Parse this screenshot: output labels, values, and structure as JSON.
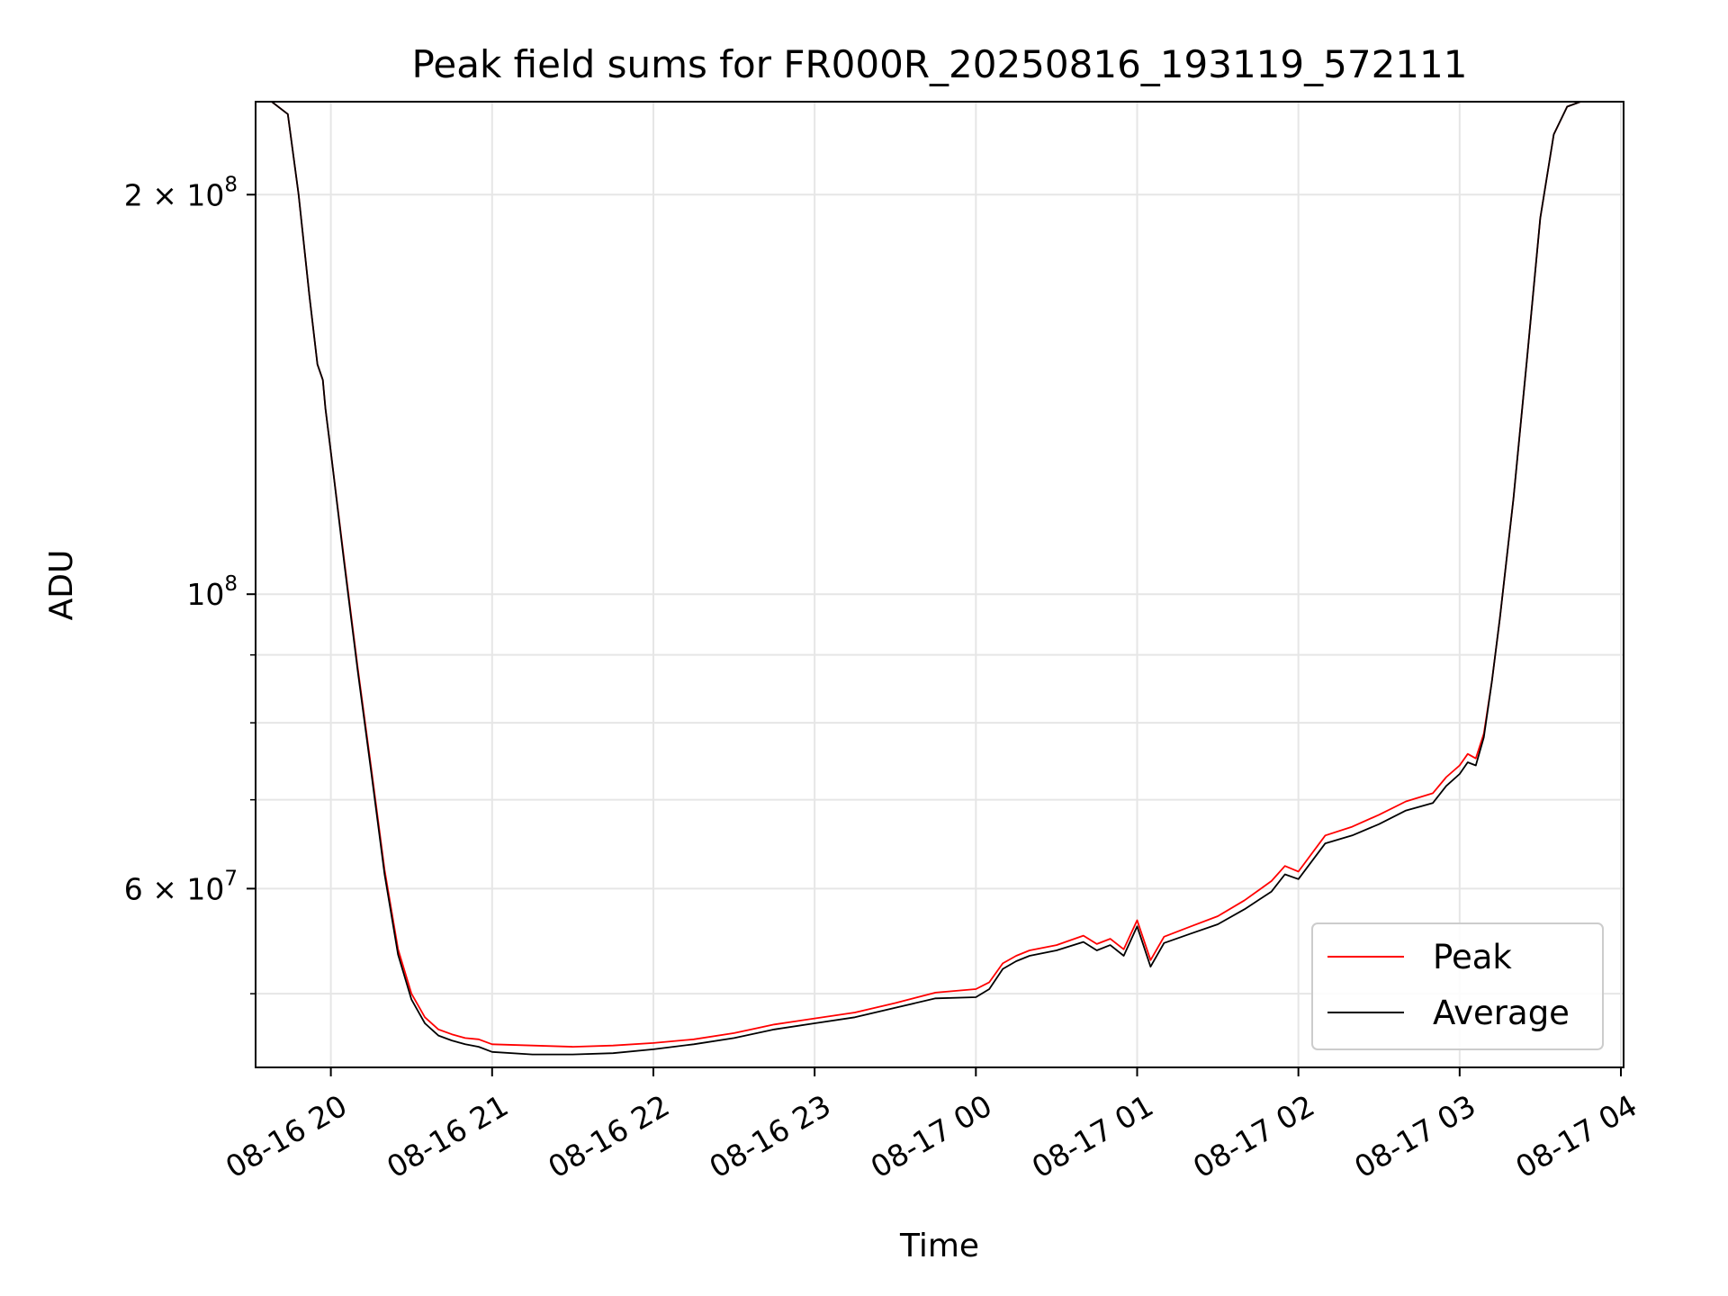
{
  "chart_data": {
    "type": "line",
    "title": "Peak field sums for FR000R_20250816_193119_572111",
    "xlabel": "Time",
    "ylabel": "ADU",
    "y_scale": "log",
    "ylim": [
      44000000,
      235000000
    ],
    "xlim": [
      "2025-08-16 19:32",
      "2025-08-17 04:01"
    ],
    "x_ticks": [
      "08-16 20",
      "08-16 21",
      "08-16 22",
      "08-16 23",
      "08-17 00",
      "08-17 01",
      "08-17 02",
      "08-17 03",
      "08-17 04"
    ],
    "y_ticks_major": [
      {
        "value": 200000000,
        "base": "2",
        "exp": "8"
      },
      {
        "value": 100000000,
        "base": "",
        "exp": "8"
      },
      {
        "value": 60000000,
        "base": "6",
        "exp": "7"
      }
    ],
    "y_ticks_minor": [
      50000000,
      70000000,
      80000000,
      90000000
    ],
    "grid": true,
    "legend_position": "lower-right",
    "series": [
      {
        "name": "Peak",
        "color": "#ff0000",
        "x": [
          "2025-08-16 19:32",
          "2025-08-16 19:38",
          "2025-08-16 19:44",
          "2025-08-16 19:48",
          "2025-08-16 19:52",
          "2025-08-16 19:55",
          "2025-08-16 19:57",
          "2025-08-16 19:58",
          "2025-08-16 20:00",
          "2025-08-16 20:05",
          "2025-08-16 20:10",
          "2025-08-16 20:15",
          "2025-08-16 20:20",
          "2025-08-16 20:25",
          "2025-08-16 20:30",
          "2025-08-16 20:35",
          "2025-08-16 20:40",
          "2025-08-16 20:45",
          "2025-08-16 20:50",
          "2025-08-16 20:55",
          "2025-08-16 21:00",
          "2025-08-16 21:15",
          "2025-08-16 21:30",
          "2025-08-16 21:45",
          "2025-08-16 22:00",
          "2025-08-16 22:15",
          "2025-08-16 22:30",
          "2025-08-16 22:45",
          "2025-08-16 23:00",
          "2025-08-16 23:15",
          "2025-08-16 23:30",
          "2025-08-16 23:45",
          "2025-08-17 00:00",
          "2025-08-17 00:05",
          "2025-08-17 00:10",
          "2025-08-17 00:15",
          "2025-08-17 00:20",
          "2025-08-17 00:30",
          "2025-08-17 00:40",
          "2025-08-17 00:45",
          "2025-08-17 00:50",
          "2025-08-17 00:55",
          "2025-08-17 01:00",
          "2025-08-17 01:05",
          "2025-08-17 01:10",
          "2025-08-17 01:20",
          "2025-08-17 01:30",
          "2025-08-17 01:40",
          "2025-08-17 01:50",
          "2025-08-17 01:55",
          "2025-08-17 02:00",
          "2025-08-17 02:10",
          "2025-08-17 02:20",
          "2025-08-17 02:30",
          "2025-08-17 02:40",
          "2025-08-17 02:50",
          "2025-08-17 02:55",
          "2025-08-17 03:00",
          "2025-08-17 03:03",
          "2025-08-17 03:06",
          "2025-08-17 03:09",
          "2025-08-17 03:12",
          "2025-08-17 03:15",
          "2025-08-17 03:20",
          "2025-08-17 03:25",
          "2025-08-17 03:30",
          "2025-08-17 03:35",
          "2025-08-17 03:40",
          "2025-08-17 03:45",
          "2025-08-17 03:50",
          "2025-08-17 03:55",
          "2025-08-17 04:01"
        ],
        "values": [
          235000000,
          235000000,
          230000000,
          200000000,
          168000000,
          149000000,
          145000000,
          138000000,
          128000000,
          106000000,
          88000000,
          74000000,
          62000000,
          54000000,
          50000000,
          48000000,
          47000000,
          46600000,
          46300000,
          46200000,
          45800000,
          45700000,
          45600000,
          45700000,
          45900000,
          46200000,
          46700000,
          47400000,
          47900000,
          48400000,
          49200000,
          50100000,
          50400000,
          51000000,
          52700000,
          53400000,
          53900000,
          54400000,
          55300000,
          54500000,
          55000000,
          54000000,
          56800000,
          53000000,
          55200000,
          56200000,
          57200000,
          58800000,
          60800000,
          62400000,
          61800000,
          65800000,
          66800000,
          68200000,
          69800000,
          70800000,
          72800000,
          74300000,
          75800000,
          75200000,
          78500000,
          86000000,
          96000000,
          118000000,
          150000000,
          192000000,
          222000000,
          233000000,
          235000000,
          235000000,
          235000000,
          235000000
        ]
      },
      {
        "name": "Average",
        "color": "#000000",
        "x": [
          "2025-08-16 19:32",
          "2025-08-16 19:38",
          "2025-08-16 19:44",
          "2025-08-16 19:48",
          "2025-08-16 19:52",
          "2025-08-16 19:55",
          "2025-08-16 19:57",
          "2025-08-16 19:58",
          "2025-08-16 20:00",
          "2025-08-16 20:05",
          "2025-08-16 20:10",
          "2025-08-16 20:15",
          "2025-08-16 20:20",
          "2025-08-16 20:25",
          "2025-08-16 20:30",
          "2025-08-16 20:35",
          "2025-08-16 20:40",
          "2025-08-16 20:45",
          "2025-08-16 20:50",
          "2025-08-16 20:55",
          "2025-08-16 21:00",
          "2025-08-16 21:15",
          "2025-08-16 21:30",
          "2025-08-16 21:45",
          "2025-08-16 22:00",
          "2025-08-16 22:15",
          "2025-08-16 22:30",
          "2025-08-16 22:45",
          "2025-08-16 23:00",
          "2025-08-16 23:15",
          "2025-08-16 23:30",
          "2025-08-16 23:45",
          "2025-08-17 00:00",
          "2025-08-17 00:05",
          "2025-08-17 00:10",
          "2025-08-17 00:15",
          "2025-08-17 00:20",
          "2025-08-17 00:30",
          "2025-08-17 00:40",
          "2025-08-17 00:45",
          "2025-08-17 00:50",
          "2025-08-17 00:55",
          "2025-08-17 01:00",
          "2025-08-17 01:05",
          "2025-08-17 01:10",
          "2025-08-17 01:20",
          "2025-08-17 01:30",
          "2025-08-17 01:40",
          "2025-08-17 01:50",
          "2025-08-17 01:55",
          "2025-08-17 02:00",
          "2025-08-17 02:10",
          "2025-08-17 02:20",
          "2025-08-17 02:30",
          "2025-08-17 02:40",
          "2025-08-17 02:50",
          "2025-08-17 02:55",
          "2025-08-17 03:00",
          "2025-08-17 03:03",
          "2025-08-17 03:06",
          "2025-08-17 03:09",
          "2025-08-17 03:12",
          "2025-08-17 03:15",
          "2025-08-17 03:20",
          "2025-08-17 03:25",
          "2025-08-17 03:30",
          "2025-08-17 03:35",
          "2025-08-17 03:40",
          "2025-08-17 03:45",
          "2025-08-17 03:50",
          "2025-08-17 03:55",
          "2025-08-17 04:01"
        ],
        "values": [
          235000000,
          235000000,
          230000000,
          200000000,
          168000000,
          149000000,
          145000000,
          138000000,
          128000000,
          105500000,
          87500000,
          73500000,
          61500000,
          53500000,
          49500000,
          47500000,
          46500000,
          46100000,
          45800000,
          45600000,
          45200000,
          45000000,
          45000000,
          45100000,
          45400000,
          45800000,
          46300000,
          47000000,
          47500000,
          48000000,
          48800000,
          49600000,
          49700000,
          50400000,
          52200000,
          52900000,
          53400000,
          53900000,
          54700000,
          53900000,
          54400000,
          53400000,
          56200000,
          52400000,
          54600000,
          55500000,
          56400000,
          57900000,
          59700000,
          61500000,
          61000000,
          64900000,
          65800000,
          67100000,
          68700000,
          69600000,
          71700000,
          73200000,
          74700000,
          74300000,
          78000000,
          86000000,
          96000000,
          118000000,
          150000000,
          192000000,
          222000000,
          233000000,
          235000000,
          235000000,
          235000000,
          235000000
        ]
      }
    ]
  }
}
